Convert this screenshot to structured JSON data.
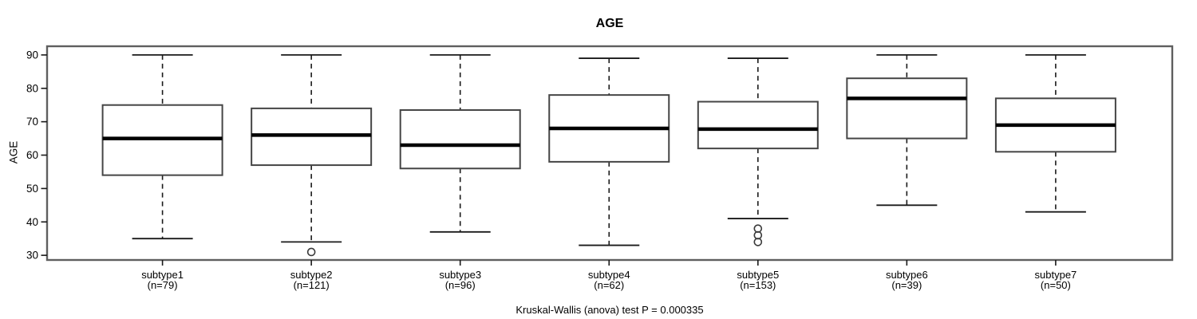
{
  "page": {
    "title": "AGE",
    "y_axis_title": "AGE",
    "caption": "Kruskal-Wallis (anova) test P = 0.000335"
  },
  "chart_data": {
    "type": "boxplot",
    "title": "AGE",
    "xlabel": "",
    "ylabel": "AGE",
    "caption": "Kruskal-Wallis (anova) test P = 0.000335",
    "grid": false,
    "legend": "none",
    "axis": {
      "ymin": 28.6,
      "ymax": 92.6,
      "yticks": [
        30,
        40,
        50,
        60,
        70,
        80,
        90
      ]
    },
    "categories": [
      "subtype1",
      "subtype2",
      "subtype3",
      "subtype4",
      "subtype5",
      "subtype6",
      "subtype7"
    ],
    "groups": [
      {
        "label": "subtype1",
        "sublabel": "(n=79)",
        "n": 79,
        "whisker_low": 35,
        "q1": 54,
        "median": 65,
        "q3": 75,
        "whisker_high": 90,
        "outliers": []
      },
      {
        "label": "subtype2",
        "sublabel": "(n=121)",
        "n": 121,
        "whisker_low": 34,
        "q1": 57,
        "median": 66,
        "q3": 74,
        "whisker_high": 90,
        "outliers": [
          31
        ]
      },
      {
        "label": "subtype3",
        "sublabel": "(n=96)",
        "n": 96,
        "whisker_low": 37,
        "q1": 56,
        "median": 63,
        "q3": 73.5,
        "whisker_high": 90,
        "outliers": []
      },
      {
        "label": "subtype4",
        "sublabel": "(n=62)",
        "n": 62,
        "whisker_low": 33,
        "q1": 58,
        "median": 68,
        "q3": 78,
        "whisker_high": 89,
        "outliers": []
      },
      {
        "label": "subtype5",
        "sublabel": "(n=153)",
        "n": 153,
        "whisker_low": 41,
        "q1": 62,
        "median": 67.8,
        "q3": 76,
        "whisker_high": 89,
        "outliers": [
          38,
          36,
          34
        ]
      },
      {
        "label": "subtype6",
        "sublabel": "(n=39)",
        "n": 39,
        "whisker_low": 45,
        "q1": 65,
        "median": 77,
        "q3": 83,
        "whisker_high": 90,
        "outliers": []
      },
      {
        "label": "subtype7",
        "sublabel": "(n=50)",
        "n": 50,
        "whisker_low": 43,
        "q1": 61,
        "median": 69,
        "q3": 77,
        "whisker_high": 90,
        "outliers": []
      }
    ],
    "colors": {
      "frame": "#5f5f5f",
      "box_border": "#454545",
      "median": "#000000",
      "whisker": "#1a1a1a",
      "outlier": "#3a3a3a",
      "fill": "#ffffff",
      "text": "#000000"
    }
  }
}
